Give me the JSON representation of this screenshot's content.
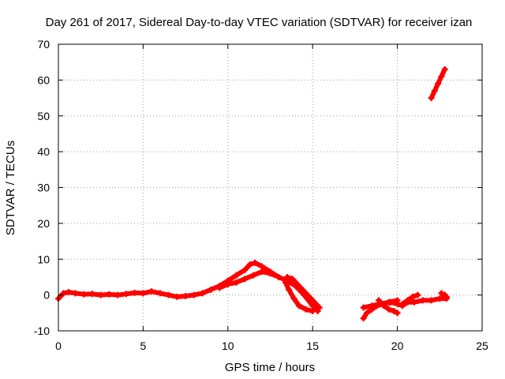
{
  "chart_data": {
    "type": "scatter",
    "title": "Day 261 of 2017, Sidereal Day-to-day VTEC variation (SDTVAR) for receiver izan",
    "xlabel": "GPS time / hours",
    "ylabel": "SDTVAR / TECUs",
    "xlim": [
      0,
      25
    ],
    "ylim": [
      -10,
      70
    ],
    "xticks": [
      0,
      5,
      10,
      15,
      20,
      25
    ],
    "yticks": [
      -10,
      0,
      10,
      20,
      30,
      40,
      50,
      60,
      70
    ],
    "grid": true,
    "marker": "plus",
    "colors": {
      "series": "#ff0000",
      "grid": "#a0a0a0",
      "axis": "#000000"
    },
    "series": [
      {
        "name": "SDTVAR",
        "segments": [
          {
            "x": [
              0.0,
              0.3,
              0.6,
              1.0,
              1.5,
              2.0,
              2.5,
              3.0,
              3.5,
              4.0,
              4.5,
              5.0,
              5.5,
              6.0,
              6.5,
              7.0,
              7.5,
              8.0,
              8.5,
              9.0,
              9.5,
              10.0,
              10.5,
              11.0,
              11.3,
              11.6,
              12.0,
              12.5,
              13.0,
              13.5,
              14.0,
              14.5,
              15.0,
              15.3
            ],
            "y": [
              -1.0,
              0.5,
              0.8,
              0.5,
              0.2,
              0.3,
              0.0,
              0.2,
              0.0,
              0.3,
              0.6,
              0.5,
              1.0,
              0.5,
              0.0,
              -0.5,
              -0.3,
              0.0,
              0.5,
              1.5,
              2.5,
              4.0,
              5.5,
              7.0,
              8.5,
              9.0,
              8.0,
              6.5,
              5.0,
              4.0,
              2.5,
              0.0,
              -3.0,
              -4.5
            ]
          },
          {
            "x": [
              9.5,
              10.0,
              10.5,
              11.0,
              11.5,
              12.0,
              12.5,
              13.0
            ],
            "y": [
              2.0,
              3.0,
              3.5,
              4.5,
              5.5,
              6.5,
              6.0,
              5.0
            ]
          },
          {
            "x": [
              13.5,
              13.8,
              14.0,
              14.3,
              14.6,
              15.0,
              15.4
            ],
            "y": [
              5.0,
              4.5,
              3.5,
              2.0,
              0.5,
              -1.5,
              -3.5
            ]
          },
          {
            "x": [
              13.4,
              13.6,
              13.9,
              14.2,
              14.6,
              15.0
            ],
            "y": [
              3.5,
              1.5,
              -1.0,
              -3.0,
              -4.0,
              -4.5
            ]
          },
          {
            "x": [
              18.0,
              18.2,
              18.5,
              18.8,
              19.2,
              19.6,
              20.0,
              20.3,
              20.6
            ],
            "y": [
              -6.5,
              -5.0,
              -4.0,
              -3.0,
              -2.5,
              -2.0,
              -2.5,
              -3.0,
              -2.0
            ]
          },
          {
            "x": [
              18.0,
              18.5,
              19.0,
              19.5,
              20.0
            ],
            "y": [
              -3.5,
              -3.0,
              -2.5,
              -2.0,
              -1.5
            ]
          },
          {
            "x": [
              18.9,
              19.2,
              19.5,
              19.8,
              20.0
            ],
            "y": [
              -1.5,
              -3.0,
              -4.0,
              -4.5,
              -5.0
            ]
          },
          {
            "x": [
              20.3,
              20.6,
              20.9,
              21.2
            ],
            "y": [
              -2.5,
              -1.5,
              -0.5,
              0.0
            ]
          },
          {
            "x": [
              20.5,
              21.0,
              21.5,
              22.0,
              22.5,
              22.9
            ],
            "y": [
              -2.0,
              -2.0,
              -1.5,
              -1.5,
              -1.0,
              -1.0
            ]
          },
          {
            "x": [
              22.6,
              22.8,
              22.9
            ],
            "y": [
              0.5,
              0.0,
              -0.5
            ]
          },
          {
            "x": [
              22.0,
              22.2,
              22.4,
              22.6,
              22.8
            ],
            "y": [
              55.0,
              57.0,
              59.0,
              61.0,
              63.0
            ]
          }
        ]
      }
    ]
  }
}
